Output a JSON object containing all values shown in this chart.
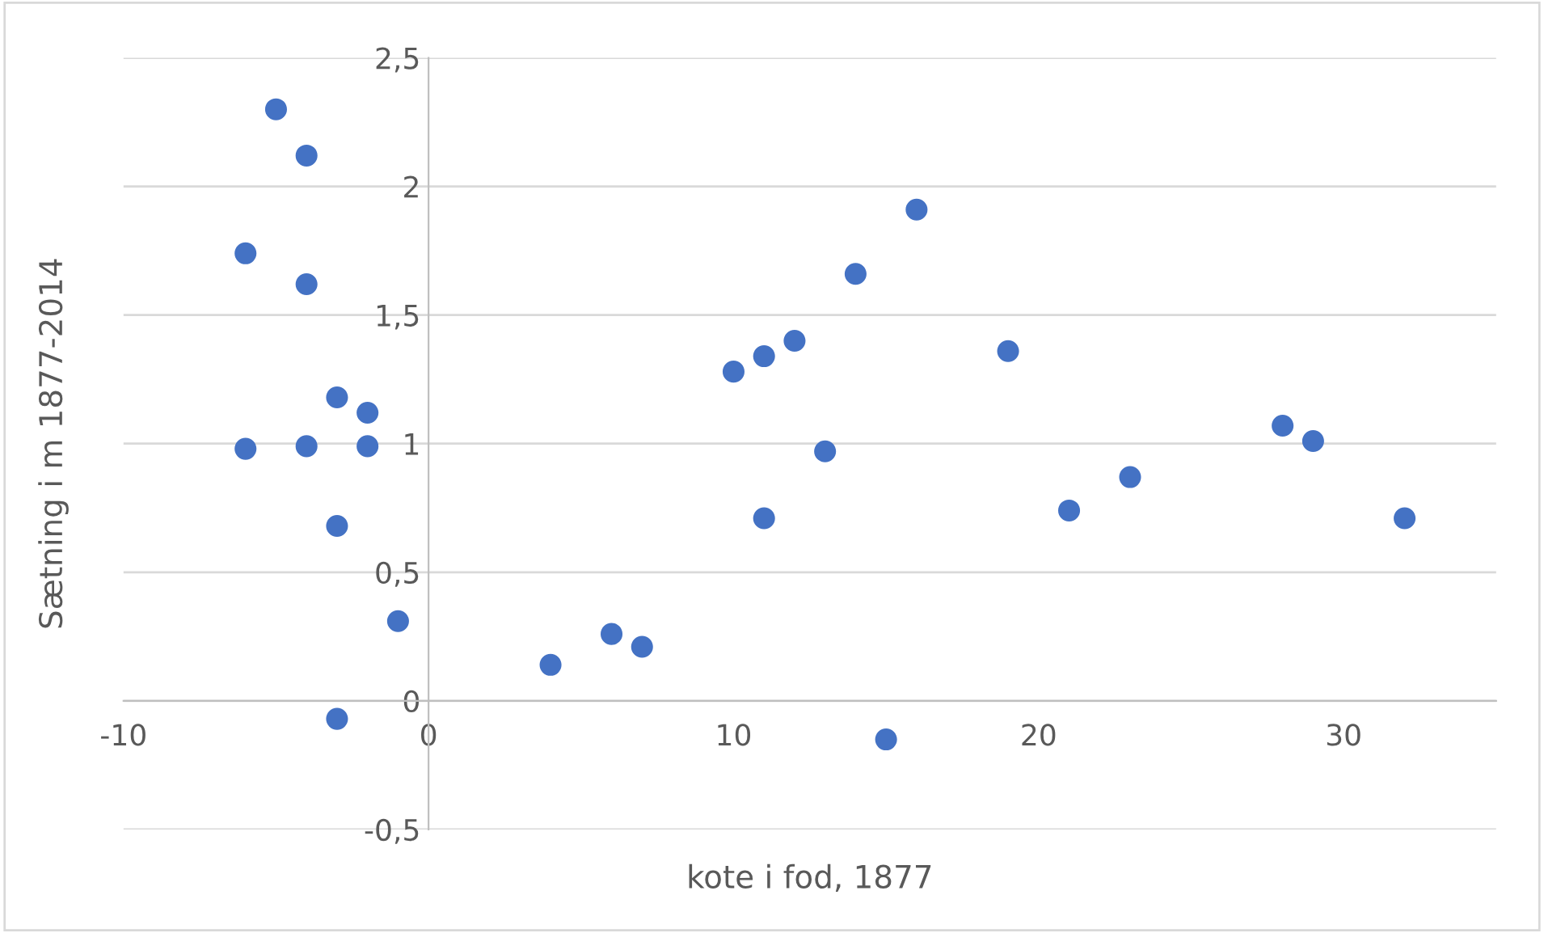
{
  "chart_data": {
    "type": "scatter",
    "xlabel": "kote i fod, 1877",
    "ylabel": "Sætning i m 1877-2014",
    "x": [
      -5,
      -4,
      -6,
      -4,
      -3,
      -2,
      -6,
      -4,
      -2,
      -3,
      -1,
      -3,
      4,
      6,
      7,
      10,
      11,
      12,
      11,
      13,
      14,
      15,
      16,
      19,
      21,
      23,
      28,
      29,
      32
    ],
    "series": [
      {
        "color": "#4472c4",
        "values": [
          2.3,
          2.12,
          1.74,
          1.62,
          1.18,
          1.12,
          0.98,
          0.99,
          0.99,
          0.68,
          0.31,
          -0.07,
          0.14,
          0.26,
          0.21,
          1.28,
          1.34,
          1.4,
          0.71,
          0.97,
          1.66,
          -0.15,
          1.91,
          1.36,
          0.74,
          0.87,
          1.07,
          1.01,
          0.71
        ]
      }
    ],
    "xlim": [
      -10,
      35
    ],
    "xticks": [
      -10,
      0,
      10,
      20,
      30
    ],
    "ylim": [
      -0.5,
      2.5
    ],
    "yticks": [
      {
        "value": -0.5,
        "label": "-0,5"
      },
      0,
      {
        "value": 0.5,
        "label": "0,5"
      },
      1,
      {
        "value": 1.5,
        "label": "1,5"
      },
      2,
      {
        "value": 2.5,
        "label": "2,5"
      }
    ],
    "grid": "y",
    "marker": "circle",
    "legend": false
  }
}
